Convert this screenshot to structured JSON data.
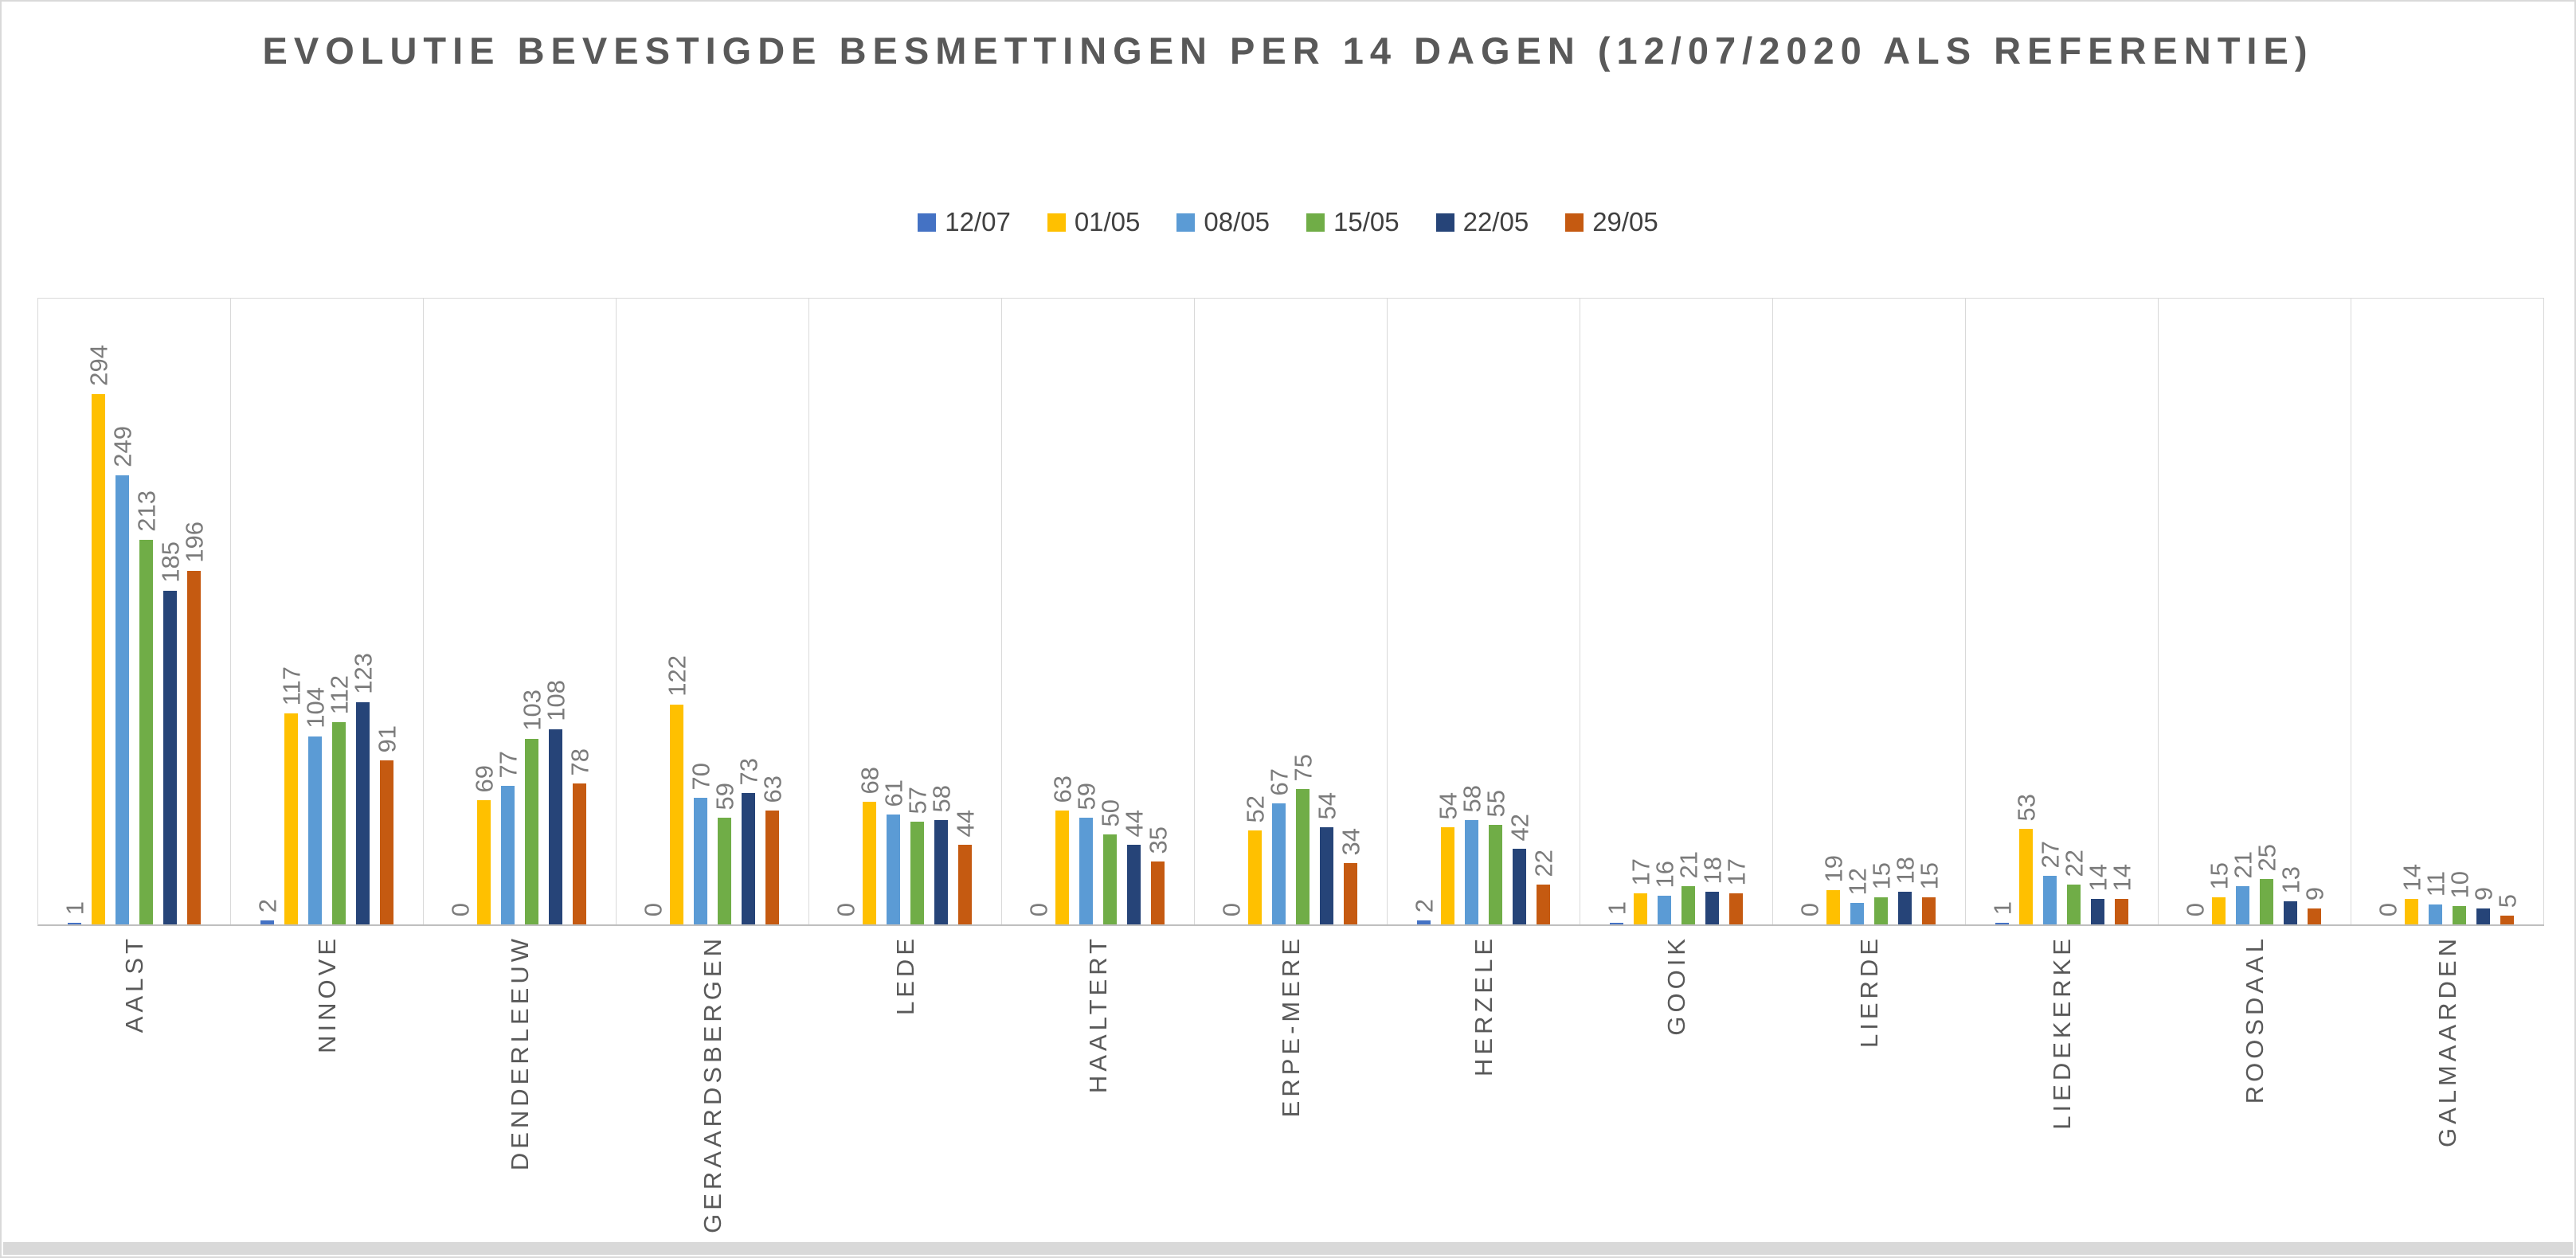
{
  "title": "EVOLUTIE BEVESTIGDE BESMETTINGEN PER 14 DAGEN (12/07/2020 ALS REFERENTIE)",
  "colors": {
    "gridline": "#D9D9D9",
    "axis_line": "#BFBFBF",
    "title_text": "#595959",
    "legend_text": "#404040",
    "data_label_text": "#7B7B7B",
    "category_label_text": "#595959"
  },
  "chart_data": {
    "type": "bar",
    "title": "EVOLUTIE BEVESTIGDE BESMETTINGEN PER 14 DAGEN (12/07/2020 ALS REFERENTIE)",
    "legend_position": "top",
    "grid": "vertical-category-separators",
    "ylim": [
      0,
      350
    ],
    "xlabel": "",
    "ylabel": "",
    "categories": [
      "AALST",
      "NINOVE",
      "DENDERLEEUW",
      "GERAARDSBERGEN",
      "LEDE",
      "HAALTERT",
      "ERPE-MERE",
      "HERZELE",
      "GOOIK",
      "LIERDE",
      "LIEDEKERKE",
      "ROOSDAAL",
      "GALMAARDEN"
    ],
    "series": [
      {
        "name": "12/07",
        "color": "#4472C4",
        "values": [
          1,
          2,
          0,
          0,
          0,
          0,
          0,
          2,
          1,
          0,
          1,
          0,
          0
        ]
      },
      {
        "name": "01/05",
        "color": "#FFC000",
        "values": [
          294,
          117,
          69,
          122,
          68,
          63,
          52,
          54,
          17,
          19,
          53,
          15,
          14
        ]
      },
      {
        "name": "08/05",
        "color": "#5B9BD5",
        "values": [
          249,
          104,
          77,
          70,
          61,
          59,
          67,
          58,
          16,
          12,
          27,
          21,
          11
        ]
      },
      {
        "name": "15/05",
        "color": "#70AD47",
        "values": [
          213,
          112,
          103,
          59,
          57,
          50,
          75,
          55,
          21,
          15,
          22,
          25,
          10
        ]
      },
      {
        "name": "22/05",
        "color": "#264478",
        "values": [
          185,
          123,
          108,
          73,
          58,
          44,
          54,
          42,
          18,
          18,
          14,
          13,
          9
        ]
      },
      {
        "name": "29/05",
        "color": "#C55A11",
        "values": [
          196,
          91,
          78,
          63,
          44,
          35,
          34,
          22,
          17,
          15,
          14,
          9,
          5
        ]
      }
    ]
  }
}
